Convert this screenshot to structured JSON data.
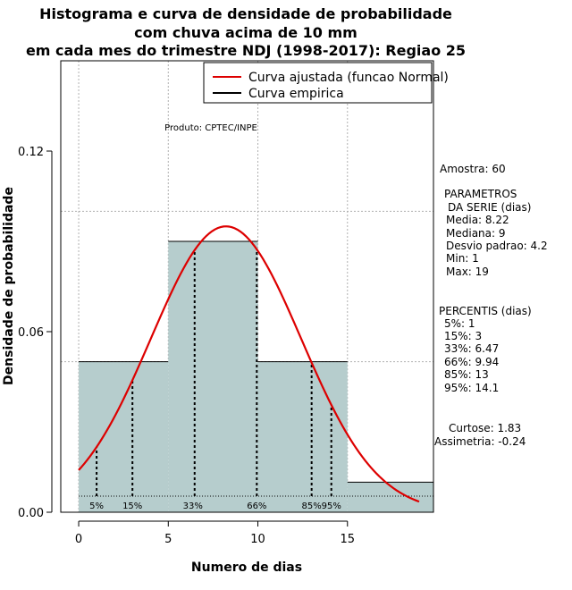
{
  "chart_data": {
    "type": "histogram",
    "title_lines": [
      "Histograma e curva de densidade de probabilidade",
      "com chuva acima de 10 mm",
      "em cada mes do trimestre NDJ (1998-2017): Regiao 25"
    ],
    "xlabel": "Numero de dias",
    "ylabel": "Densidade de probabilidade",
    "xlim": [
      -1,
      19.8
    ],
    "ylim": [
      0,
      0.15
    ],
    "x_ticks": [
      0,
      5,
      10,
      15
    ],
    "y_ticks": [
      0.0,
      0.06,
      0.12
    ],
    "y_tick_labels": [
      "0.00",
      "0.06",
      "0.12"
    ],
    "grid": true,
    "bins": [
      {
        "from": 0,
        "to": 5,
        "density": 0.05
      },
      {
        "from": 5,
        "to": 10,
        "density": 0.09
      },
      {
        "from": 10,
        "to": 15,
        "density": 0.05
      },
      {
        "from": 15,
        "to": 20,
        "density": 0.01
      }
    ],
    "bar_color": "#b6cdcd",
    "curve_color": "#dd0000",
    "normal_curve": {
      "mean": 8.22,
      "sd": 4.2,
      "from": 0,
      "to": 19
    },
    "percentile_lines": [
      {
        "label": "5%",
        "x": 1
      },
      {
        "label": "15%",
        "x": 3
      },
      {
        "label": "33%",
        "x": 6.47
      },
      {
        "label": "66%",
        "x": 9.94
      },
      {
        "label": "85%",
        "x": 13
      },
      {
        "label": "95%",
        "x": 14.1
      }
    ],
    "legend": [
      {
        "label": "Curva ajustada (funcao Normal)",
        "color": "#dd0000"
      },
      {
        "label": "Curva empirica",
        "color": "#000000"
      }
    ],
    "product_note": "Produto: CPTEC/INPE",
    "side_text": [
      "Amostra: 60",
      "PARAMETROS",
      "DA SERIE (dias)",
      "Media: 8.22",
      "Mediana: 9",
      "Desvio padrao: 4.2",
      "Min: 1",
      "Max: 19",
      "PERCENTIS (dias)",
      "5%: 1",
      "15%: 3",
      "33%: 6.47",
      "66%: 9.94",
      "85%: 13",
      "95%: 14.1",
      "Curtose: 1.83",
      "Assimetria: -0.24"
    ]
  }
}
